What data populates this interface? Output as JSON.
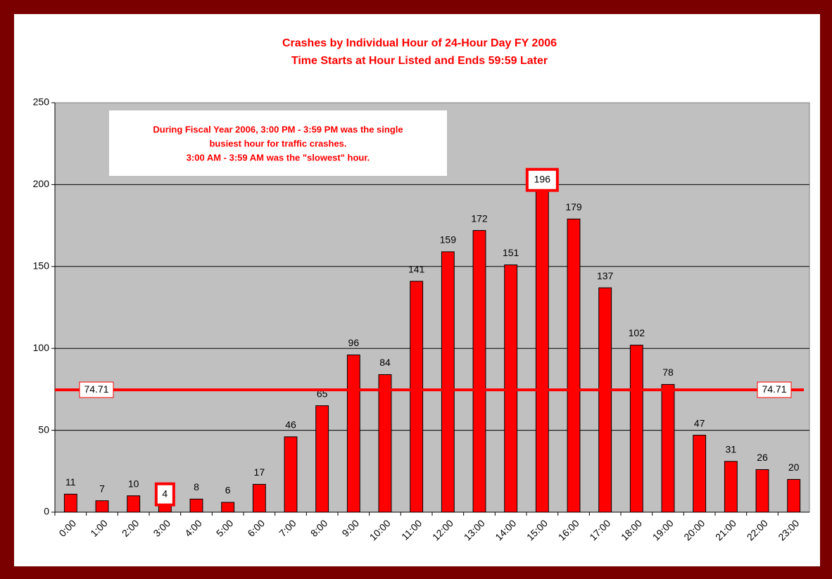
{
  "chart_data": {
    "type": "bar",
    "title": [
      "Crashes by Individual Hour of 24-Hour Day FY 2006",
      "Time Starts at Hour Listed and Ends 59:59 Later"
    ],
    "categories": [
      "0:00",
      "1:00",
      "2:00",
      "3:00",
      "4:00",
      "5:00",
      "6:00",
      "7:00",
      "8:00",
      "9:00",
      "10:00",
      "11:00",
      "12:00",
      "13:00",
      "14:00",
      "15:00",
      "16:00",
      "17:00",
      "18:00",
      "19:00",
      "20:00",
      "21:00",
      "22:00",
      "23:00"
    ],
    "values": [
      11,
      7,
      10,
      4,
      8,
      6,
      17,
      46,
      65,
      96,
      84,
      141,
      159,
      172,
      151,
      196,
      179,
      137,
      102,
      78,
      47,
      31,
      26,
      20
    ],
    "color": "#ff0000",
    "ylim": [
      0,
      250
    ],
    "yticks": [
      0,
      50,
      100,
      150,
      200,
      250
    ],
    "grid": true,
    "average_line": 74.71,
    "highlighted_categories": [
      "3:00",
      "15:00"
    ],
    "annotation": [
      "During Fiscal Year 2006, 3:00 PM - 3:59 PM was the single",
      "busiest hour for traffic crashes.",
      "3:00 AM - 3:59 AM was the \"slowest\" hour."
    ]
  }
}
